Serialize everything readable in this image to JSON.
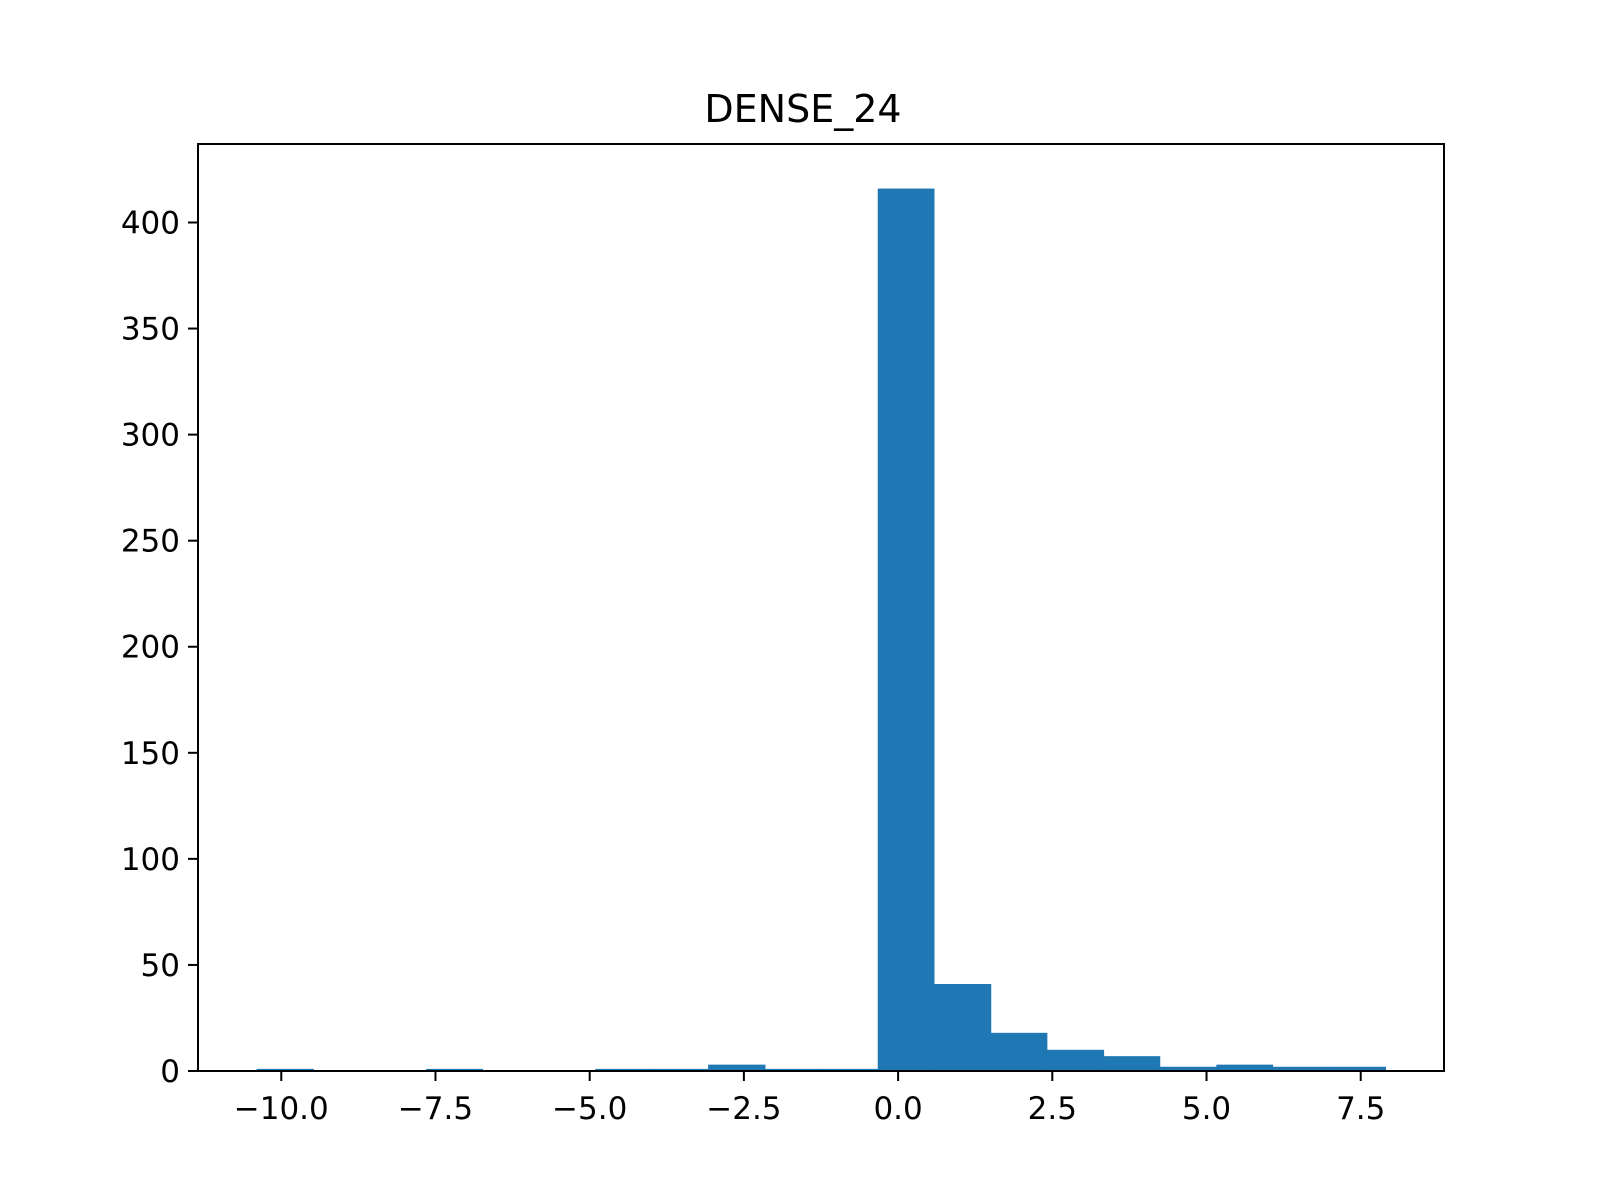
{
  "chart_data": {
    "type": "bar",
    "title": "DENSE_24",
    "xlabel": "",
    "ylabel": "",
    "bin_edges": [
      -10.4,
      -9.48,
      -8.57,
      -7.65,
      -6.74,
      -5.82,
      -4.91,
      -3.99,
      -3.08,
      -2.16,
      -1.25,
      -0.33,
      0.58,
      1.5,
      2.41,
      3.33,
      4.24,
      5.16,
      6.07,
      6.99,
      7.9
    ],
    "values": [
      1,
      0,
      0,
      1,
      0,
      0,
      1,
      1,
      3,
      1,
      1,
      416,
      41,
      18,
      10,
      7,
      2,
      3,
      2,
      2
    ],
    "xlim": [
      -11.35,
      8.85
    ],
    "ylim": [
      0,
      437
    ],
    "xticks": [
      -10.0,
      -7.5,
      -5.0,
      -2.5,
      0.0,
      2.5,
      5.0,
      7.5
    ],
    "xtick_labels": [
      "−10.0",
      "−7.5",
      "−5.0",
      "−2.5",
      "0.0",
      "2.5",
      "5.0",
      "7.5"
    ],
    "yticks": [
      0,
      50,
      100,
      150,
      200,
      250,
      300,
      350,
      400
    ],
    "ytick_labels": [
      "0",
      "50",
      "100",
      "150",
      "200",
      "250",
      "300",
      "350",
      "400"
    ],
    "bar_color": "#1f77b4",
    "grid": false,
    "legend": "none"
  }
}
